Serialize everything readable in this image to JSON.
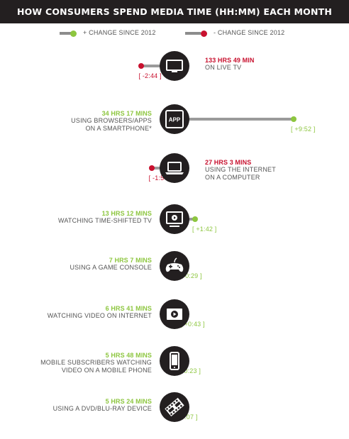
{
  "header": {
    "title": "HOW CONSUMERS SPEND MEDIA TIME (HH:MM) EACH MONTH"
  },
  "legend": {
    "positive_label": "+ CHANGE SINCE 2012",
    "negative_label": "- CHANGE SINCE 2012",
    "positive_color": "#8dc63f",
    "negative_color": "#c8102e"
  },
  "chart_data": {
    "type": "bar",
    "title": "HOW CONSUMERS SPEND MEDIA TIME (HH:MM) EACH MONTH",
    "legend": [
      "+ CHANGE SINCE 2012",
      "- CHANGE SINCE 2012"
    ],
    "rows": [
      {
        "value": "133 HRS 49 MIN",
        "desc": [
          "ON LIVE TV"
        ],
        "change": "[ -2:44 ]",
        "change_minutes": -164,
        "direction": "negative",
        "icon": "tv-icon",
        "text_side": "right"
      },
      {
        "value": "34 HRS 17 MINS",
        "desc": [
          "USING BROWSERS/APPS",
          "ON A SMARTPHONE*"
        ],
        "change": "[ +9:52 ]",
        "change_minutes": 592,
        "direction": "positive",
        "icon": "app-icon",
        "icon_text": "APP",
        "text_side": "left"
      },
      {
        "value": "27 HRS 3 MINS",
        "desc": [
          "USING THE INTERNET",
          "ON A COMPUTER"
        ],
        "change": "[ -1:54 ]",
        "change_minutes": -114,
        "direction": "negative",
        "icon": "laptop-icon",
        "text_side": "right"
      },
      {
        "value": "13 HRS 12 MINS",
        "desc": [
          "WATCHING TIME-SHIFTED TV"
        ],
        "change": "[ +1:42 ]",
        "change_minutes": 102,
        "direction": "positive",
        "icon": "time-shifted-tv-icon",
        "text_side": "left"
      },
      {
        "value": "7 HRS 7 MINS",
        "desc": [
          "USING A GAME CONSOLE"
        ],
        "change": "[ +0:29 ]",
        "change_minutes": 29,
        "direction": "positive",
        "icon": "game-controller-icon",
        "text_side": "left"
      },
      {
        "value": "6 HRS 41 MINS",
        "desc": [
          "WATCHING VIDEO ON INTERNET"
        ],
        "change": "[ +0:43 ]",
        "change_minutes": 43,
        "direction": "positive",
        "icon": "video-play-icon",
        "text_side": "left"
      },
      {
        "value": "5 HRS 48 MINS",
        "desc": [
          "MOBILE SUBSCRIBERS WATCHING",
          "VIDEO ON A MOBILE PHONE"
        ],
        "change": "[ +0:23 ]",
        "change_minutes": 23,
        "direction": "positive",
        "icon": "mobile-phone-icon",
        "text_side": "left"
      },
      {
        "value": "5 HRS 24 MINS",
        "desc": [
          "USING A DVD/BLU-RAY DEVICE"
        ],
        "change": "[ +0:07 ]",
        "change_minutes": 7,
        "direction": "positive",
        "icon": "film-strip-icon",
        "text_side": "left"
      }
    ]
  }
}
